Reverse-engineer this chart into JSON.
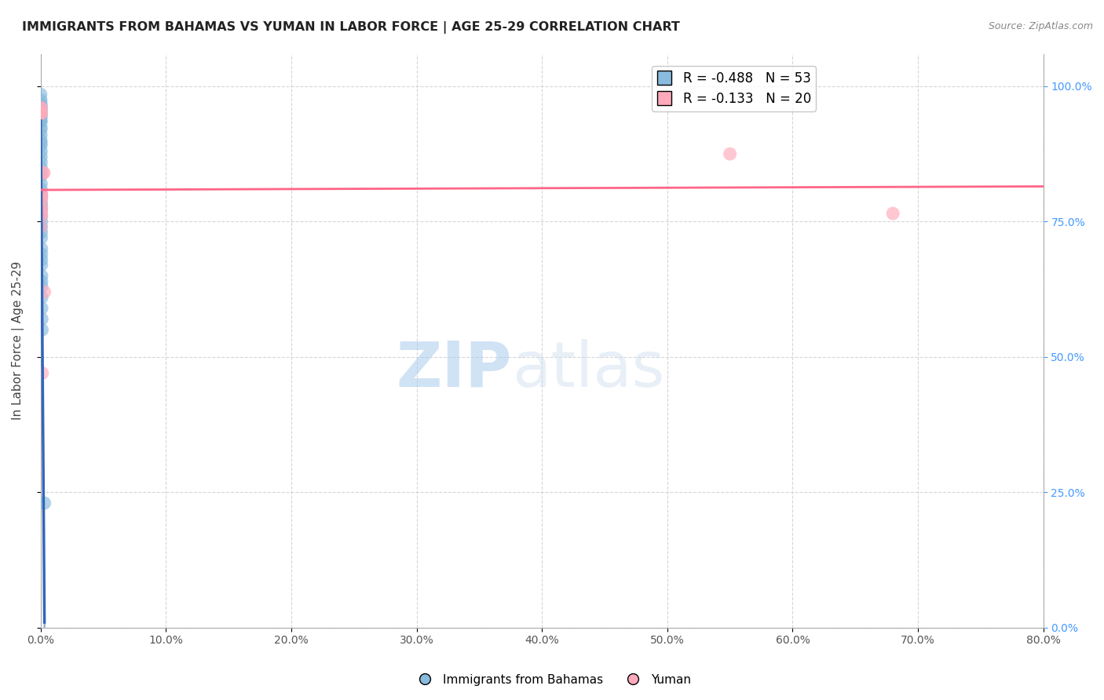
{
  "title": "IMMIGRANTS FROM BAHAMAS VS YUMAN IN LABOR FORCE | AGE 25-29 CORRELATION CHART",
  "source": "Source: ZipAtlas.com",
  "ylabel": "In Labor Force | Age 25-29",
  "r_blue": -0.488,
  "n_blue": 53,
  "r_pink": -0.133,
  "n_pink": 20,
  "blue_color": "#88BBDD",
  "pink_color": "#FFAABB",
  "blue_line_color": "#3366BB",
  "pink_line_color": "#FF6688",
  "blue_scatter": [
    [
      0.0,
      0.985
    ],
    [
      0.0,
      0.97
    ],
    [
      0.0,
      0.96
    ],
    [
      0.0,
      0.955
    ],
    [
      0.0001,
      0.975
    ],
    [
      0.0001,
      0.965
    ],
    [
      0.0001,
      0.958
    ],
    [
      0.0001,
      0.95
    ],
    [
      0.0001,
      0.945
    ],
    [
      0.0001,
      0.94
    ],
    [
      0.0001,
      0.935
    ],
    [
      0.0001,
      0.96
    ],
    [
      0.0002,
      0.965
    ],
    [
      0.0002,
      0.955
    ],
    [
      0.0002,
      0.945
    ],
    [
      0.0002,
      0.935
    ],
    [
      0.0002,
      0.925
    ],
    [
      0.0002,
      0.92
    ],
    [
      0.0002,
      0.91
    ],
    [
      0.0002,
      0.9
    ],
    [
      0.0002,
      0.895
    ],
    [
      0.0002,
      0.89
    ],
    [
      0.0003,
      0.88
    ],
    [
      0.0003,
      0.87
    ],
    [
      0.0003,
      0.86
    ],
    [
      0.0003,
      0.85
    ],
    [
      0.0003,
      0.84
    ],
    [
      0.0003,
      0.835
    ],
    [
      0.0003,
      0.82
    ],
    [
      0.0003,
      0.81
    ],
    [
      0.0004,
      0.8
    ],
    [
      0.0004,
      0.795
    ],
    [
      0.0004,
      0.785
    ],
    [
      0.0004,
      0.78
    ],
    [
      0.0004,
      0.775
    ],
    [
      0.0004,
      0.77
    ],
    [
      0.0005,
      0.76
    ],
    [
      0.0005,
      0.75
    ],
    [
      0.0005,
      0.74
    ],
    [
      0.0005,
      0.73
    ],
    [
      0.0005,
      0.72
    ],
    [
      0.0006,
      0.7
    ],
    [
      0.0006,
      0.69
    ],
    [
      0.0006,
      0.68
    ],
    [
      0.0006,
      0.67
    ],
    [
      0.0007,
      0.65
    ],
    [
      0.0007,
      0.64
    ],
    [
      0.0007,
      0.63
    ],
    [
      0.0008,
      0.61
    ],
    [
      0.0008,
      0.59
    ],
    [
      0.0009,
      0.57
    ],
    [
      0.001,
      0.55
    ],
    [
      0.003,
      0.23
    ]
  ],
  "pink_scatter": [
    [
      0.0,
      0.74
    ],
    [
      0.0001,
      0.96
    ],
    [
      0.0001,
      0.95
    ],
    [
      0.0002,
      0.95
    ],
    [
      0.0003,
      0.96
    ],
    [
      0.0003,
      0.95
    ],
    [
      0.0004,
      0.8
    ],
    [
      0.0004,
      0.775
    ],
    [
      0.0005,
      0.79
    ],
    [
      0.0005,
      0.765
    ],
    [
      0.0006,
      0.795
    ],
    [
      0.0006,
      0.76
    ],
    [
      0.0007,
      0.8
    ],
    [
      0.0007,
      0.775
    ],
    [
      0.0012,
      0.47
    ],
    [
      0.002,
      0.84
    ],
    [
      0.0025,
      0.84
    ],
    [
      0.003,
      0.62
    ],
    [
      0.55,
      0.875
    ],
    [
      0.68,
      0.765
    ]
  ],
  "xlim": [
    0.0,
    0.8
  ],
  "ylim": [
    0.0,
    1.06
  ],
  "xticks": [
    0.0,
    0.1,
    0.2,
    0.3,
    0.4,
    0.5,
    0.6,
    0.7,
    0.8
  ],
  "xtick_labels": [
    "0.0%",
    "10.0%",
    "20.0%",
    "30.0%",
    "40.0%",
    "50.0%",
    "60.0%",
    "70.0%",
    "80.0%"
  ],
  "yticks": [
    0.0,
    0.25,
    0.5,
    0.75,
    1.0
  ],
  "ytick_labels_left": [
    "",
    "",
    "",
    "",
    ""
  ],
  "ytick_labels_right": [
    "0.0%",
    "25.0%",
    "50.0%",
    "75.0%",
    "100.0%"
  ],
  "grid_color": "#CCCCCC",
  "background": "#FFFFFF",
  "watermark_zip": "ZIP",
  "watermark_atlas": "atlas",
  "legend_label_blue": "Immigrants from Bahamas",
  "legend_label_pink": "Yuman"
}
